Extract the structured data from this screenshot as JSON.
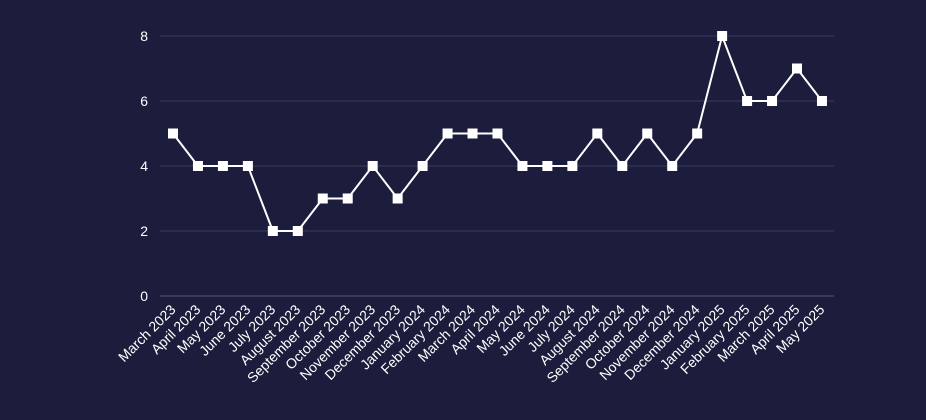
{
  "chart_data": {
    "type": "line",
    "title": "",
    "xlabel": "",
    "ylabel": "",
    "categories": [
      "March 2023",
      "April 2023",
      "May 2023",
      "June 2023",
      "July 2023",
      "August 2023",
      "September 2023",
      "October 2023",
      "November 2023",
      "December 2023",
      "January 2024",
      "February 2024",
      "March 2024",
      "April 2024",
      "May 2024",
      "June 2024",
      "July 2024",
      "August 2024",
      "September 2024",
      "October 2024",
      "November 2024",
      "December 2024",
      "January 2025",
      "February 2025",
      "March 2025",
      "April 2025",
      "May 2025"
    ],
    "series": [
      {
        "values": [
          5,
          4,
          4,
          4,
          2,
          2,
          3,
          3,
          4,
          3,
          4,
          5,
          5,
          5,
          4,
          4,
          4,
          5,
          4,
          5,
          4,
          5,
          8,
          6,
          6,
          7,
          6
        ]
      }
    ],
    "ylim": [
      0,
      8
    ],
    "yticks": [
      0,
      2,
      4,
      6,
      8
    ],
    "grid": true,
    "marker": "square",
    "colors": {
      "background": "#1c1c3c",
      "line": "#ffffff",
      "grid": "#3a3a5c",
      "text": "#ffffff"
    }
  }
}
